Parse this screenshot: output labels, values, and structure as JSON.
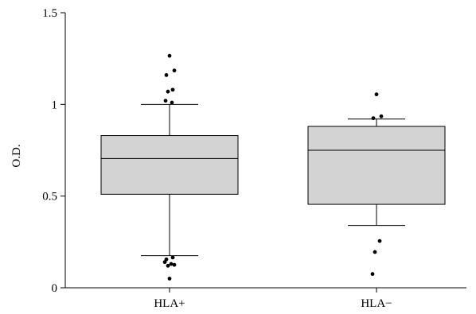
{
  "chart_data": {
    "type": "box",
    "title": "",
    "xlabel": "",
    "ylabel": "O.D.",
    "ylim": [
      0,
      1.5
    ],
    "yticks": [
      0,
      0.5,
      1,
      1.5
    ],
    "ytick_labels": [
      "0",
      "0.5",
      "1",
      "1.5"
    ],
    "categories": [
      "HLA+",
      "HLA−"
    ],
    "box_fill": "#d3d3d3",
    "line_color": "#000000",
    "boxes": [
      {
        "category": "HLA+",
        "q1": 0.51,
        "median": 0.705,
        "q3": 0.83,
        "whisker_low": 0.175,
        "whisker_high": 1.0,
        "outliers": [
          1.265,
          1.185,
          1.16,
          1.08,
          1.07,
          1.02,
          1.01,
          0.165,
          0.155,
          0.14,
          0.13,
          0.12,
          0.125,
          0.05
        ]
      },
      {
        "category": "HLA−",
        "q1": 0.455,
        "median": 0.75,
        "q3": 0.88,
        "whisker_low": 0.34,
        "whisker_high": 0.92,
        "outliers": [
          1.055,
          0.935,
          0.925,
          0.255,
          0.195,
          0.075
        ]
      }
    ]
  }
}
